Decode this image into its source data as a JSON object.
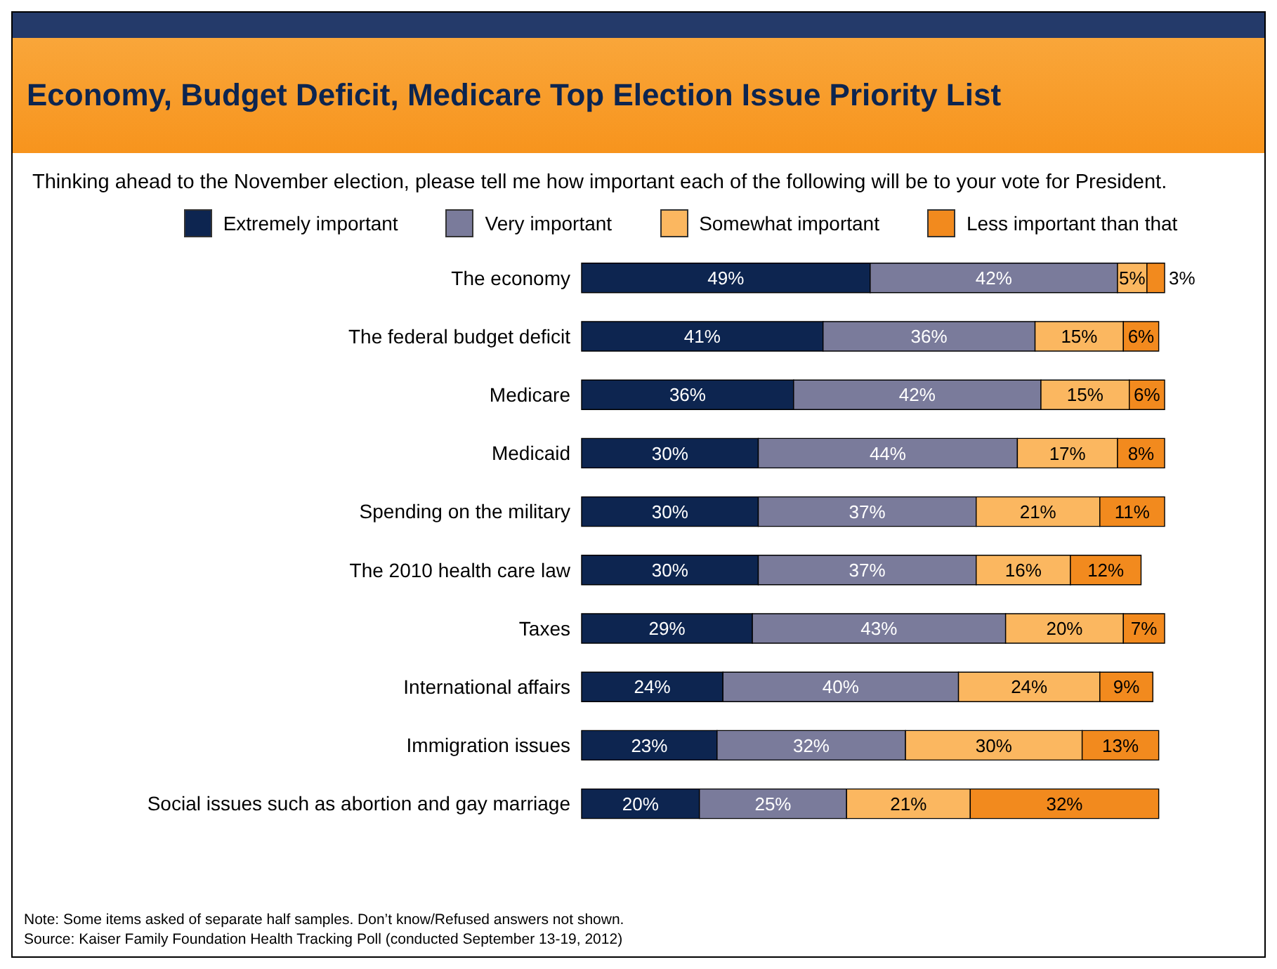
{
  "chart_data": {
    "type": "bar",
    "orientation": "horizontal",
    "stacked": true,
    "title": "Economy, Budget Deficit, Medicare Top Election Issue Priority List",
    "subtitle": "Thinking ahead to the November election, please tell me how important each of the following will be to your vote for President.",
    "legend": "top",
    "tick_labels": "y",
    "categories": [
      "The economy",
      "The federal budget deficit",
      "Medicare",
      "Medicaid",
      "Spending on the military",
      "The 2010 health care law",
      "Taxes",
      "International affairs",
      "Immigration issues",
      "Social issues such as abortion and gay marriage"
    ],
    "series": [
      {
        "name": "Extremely important",
        "color": "#0d2550",
        "values": [
          49,
          41,
          36,
          30,
          30,
          30,
          29,
          24,
          23,
          20
        ],
        "value_labels": [
          "49%",
          "41%",
          "36%",
          "30%",
          "30%",
          "30%",
          "29%",
          "24%",
          "23%",
          "20%"
        ]
      },
      {
        "name": "Very important",
        "color": "#7a7b9b",
        "values": [
          42,
          36,
          42,
          44,
          37,
          37,
          43,
          40,
          32,
          25
        ],
        "value_labels": [
          "42%",
          "36%",
          "42%",
          "44%",
          "37%",
          "37%",
          "43%",
          "40%",
          "32%",
          "25%"
        ]
      },
      {
        "name": "Somewhat important",
        "color": "#fbb760",
        "values": [
          5,
          15,
          15,
          17,
          21,
          16,
          20,
          24,
          30,
          21
        ],
        "value_labels": [
          "5%",
          "15%",
          "15%",
          "17%",
          "21%",
          "16%",
          "20%",
          "24%",
          "30%",
          "21%"
        ]
      },
      {
        "name": "Less important than that",
        "color": "#f28a1e",
        "values": [
          3,
          6,
          6,
          8,
          11,
          12,
          7,
          9,
          13,
          32
        ],
        "value_labels": [
          "3%",
          "6%",
          "6%",
          "8%",
          "11%",
          "12%",
          "7%",
          "9%",
          "13%",
          "32%"
        ]
      }
    ],
    "annotations": [
      "Note: Some items asked of separate half samples. Don’t know/Refused answers not shown.",
      "Source: Kaiser Family Foundation Health Tracking Poll (conducted September 13-19, 2012)"
    ]
  }
}
